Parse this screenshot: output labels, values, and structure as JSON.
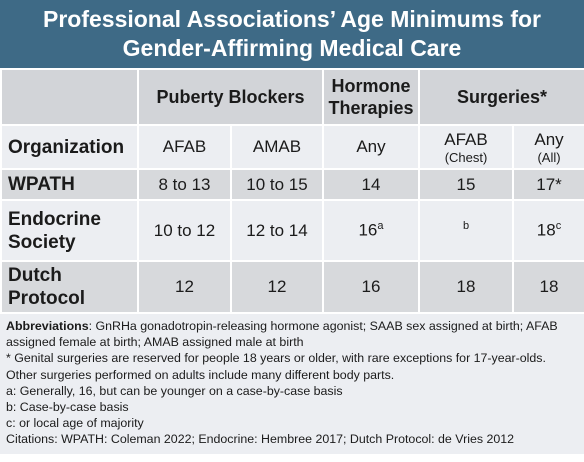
{
  "title": [
    "Professional Associations’ Age Minimums for",
    "Gender-Affirming Medical Care"
  ],
  "table": {
    "group_header": [
      "Puberty Blockers",
      "Hormone Therapies",
      "Surgeries*"
    ],
    "header": [
      "Organization",
      "AFAB",
      "AMAB",
      "Any",
      {
        "main": "AFAB",
        "sub": "(Chest)"
      },
      {
        "main": "Any",
        "sub": "(All)"
      }
    ],
    "rows": [
      {
        "organization": "WPATH",
        "cells": [
          {
            "text": "8 to 13"
          },
          {
            "text": "10 to 15"
          },
          {
            "text": "14"
          },
          {
            "text": "15"
          },
          {
            "text": "17*"
          }
        ]
      },
      {
        "organization": "Endocrine Society",
        "cells": [
          {
            "text": "10 to 12"
          },
          {
            "text": "12 to 14"
          },
          {
            "text": "16",
            "sup": "a"
          },
          {
            "sup": "b"
          },
          {
            "text": "18",
            "sup": "c"
          }
        ]
      },
      {
        "organization": "Dutch Protocol",
        "cells": [
          {
            "text": "12"
          },
          {
            "text": "12"
          },
          {
            "text": "16"
          },
          {
            "text": "18"
          },
          {
            "text": "18"
          }
        ]
      }
    ]
  },
  "notes": {
    "abbreviations_label": "Abbreviations",
    "abbreviations": ": GnRHa gonadotropin-releasing hormone agonist; SAAB sex assigned at birth; AFAB assigned female at birth; AMAB assigned male at birth",
    "lines": [
      "* Genital surgeries are reserved for people 18 years or older, with rare exceptions for 17-year-olds. Other surgeries performed on adults include many different body parts.",
      "a: Generally, 16, but can be younger on a case-by-case basis",
      "b: Case-by-case basis",
      "c: or local age of majority",
      "Citations: WPATH: Coleman 2022; Endocrine: Hembree 2017; Dutch Protocol: de Vries 2012"
    ]
  }
}
